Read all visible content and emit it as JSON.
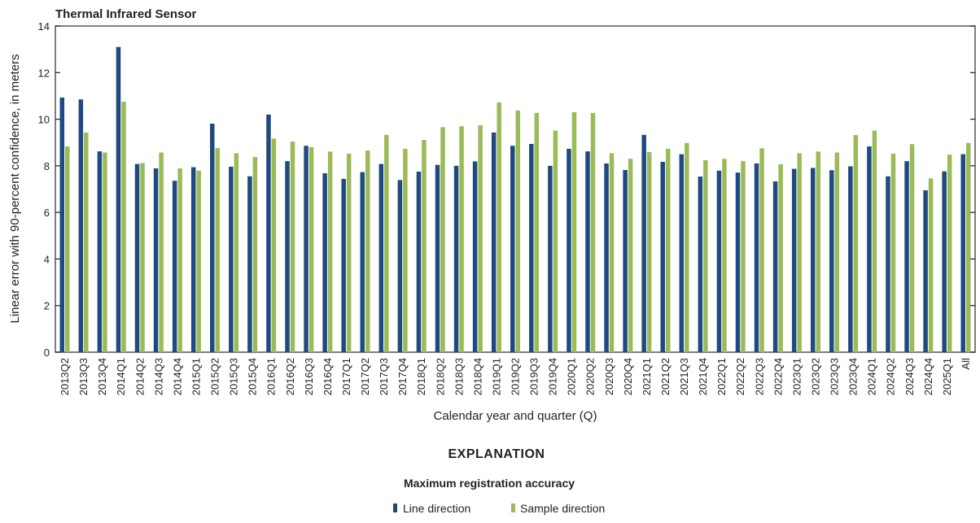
{
  "chart_data": {
    "type": "bar",
    "title": "Thermal Infrared Sensor",
    "xlabel": "Calendar year and quarter (Q)",
    "ylabel": "Linear error with 90-percent confidence, in meters",
    "ylim": [
      0,
      14
    ],
    "yticks": [
      0,
      2,
      4,
      6,
      8,
      10,
      12,
      14
    ],
    "grid": false,
    "categories": [
      "2013Q2",
      "2013Q3",
      "2013Q4",
      "2014Q1",
      "2014Q2",
      "2014Q3",
      "2014Q4",
      "2015Q1",
      "2015Q2",
      "2015Q3",
      "2015Q4",
      "2016Q1",
      "2016Q2",
      "2016Q3",
      "2016Q4",
      "2017Q1",
      "2017Q2",
      "2017Q3",
      "2017Q4",
      "2018Q1",
      "2018Q2",
      "2018Q3",
      "2018Q4",
      "2019Q1",
      "2019Q2",
      "2019Q3",
      "2019Q4",
      "2020Q1",
      "2020Q2",
      "2020Q3",
      "2020Q4",
      "2021Q1",
      "2021Q2",
      "2021Q3",
      "2021Q4",
      "2022Q1",
      "2022Q2",
      "2022Q3",
      "2022Q4",
      "2023Q1",
      "2023Q2",
      "2023Q3",
      "2023Q4",
      "2024Q1",
      "2024Q2",
      "2024Q3",
      "2024Q4",
      "2025Q1",
      "All"
    ],
    "series": [
      {
        "name": "Line direction",
        "color": "#1f4a80",
        "values": [
          10.93,
          10.85,
          8.62,
          13.1,
          8.08,
          7.89,
          7.36,
          7.94,
          9.81,
          7.96,
          7.55,
          10.2,
          8.2,
          8.86,
          7.68,
          7.44,
          7.73,
          8.08,
          7.39,
          7.75,
          8.04,
          8.0,
          8.19,
          9.43,
          8.86,
          8.94,
          8.0,
          8.73,
          8.62,
          8.1,
          7.82,
          9.33,
          8.17,
          8.5,
          7.54,
          7.79,
          7.71,
          8.1,
          7.33,
          7.87,
          7.91,
          7.81,
          7.98,
          8.83,
          7.55,
          8.2,
          6.95,
          7.76,
          8.5
        ]
      },
      {
        "name": "Sample direction",
        "color": "#9bbb59",
        "values": [
          8.83,
          9.43,
          8.57,
          10.75,
          8.12,
          8.57,
          7.89,
          7.79,
          8.76,
          8.54,
          8.38,
          9.17,
          9.04,
          8.8,
          8.61,
          8.52,
          8.66,
          9.33,
          8.73,
          9.11,
          9.66,
          9.7,
          9.74,
          10.72,
          10.37,
          10.27,
          9.51,
          10.3,
          10.27,
          8.54,
          8.3,
          8.59,
          8.73,
          8.98,
          8.24,
          8.3,
          8.2,
          8.75,
          8.07,
          8.54,
          8.61,
          8.57,
          9.32,
          9.51,
          8.52,
          8.93,
          7.46,
          8.48,
          8.98
        ]
      }
    ],
    "legend": {
      "heading": "EXPLANATION",
      "title": "Maximum registration accuracy",
      "placement": "bottom"
    }
  }
}
